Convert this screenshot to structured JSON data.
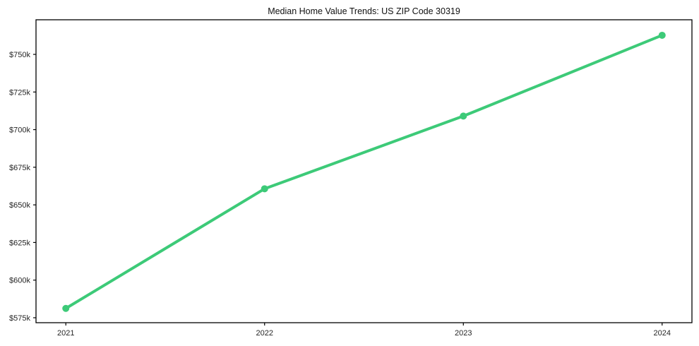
{
  "chart_data": {
    "type": "line",
    "title": "Median Home Value Trends: US ZIP Code 30319",
    "series_name": "Median home value",
    "x": [
      2021,
      2022,
      2023,
      2024
    ],
    "x_tick_labels": [
      "2021",
      "2022",
      "2023",
      "2024"
    ],
    "values": [
      581.2,
      660.7,
      709.0,
      762.7
    ],
    "value_unit": "thousand USD",
    "y_ticks": [
      575,
      600,
      625,
      650,
      675,
      700,
      725,
      750
    ],
    "y_tick_labels": [
      "$575k",
      "$600k",
      "$625k",
      "$650k",
      "$675k",
      "$700k",
      "$725k",
      "$750k"
    ],
    "xlim": [
      2020.85,
      2024.15
    ],
    "ylim": [
      571.7,
      773.0
    ],
    "xlabel": "",
    "ylabel": "",
    "grid": false,
    "legend": "none",
    "line_color": "#3dca78",
    "axis_color": "#000000",
    "text_color": "#262626",
    "background_color": "#ffffff",
    "marker": "circle"
  }
}
